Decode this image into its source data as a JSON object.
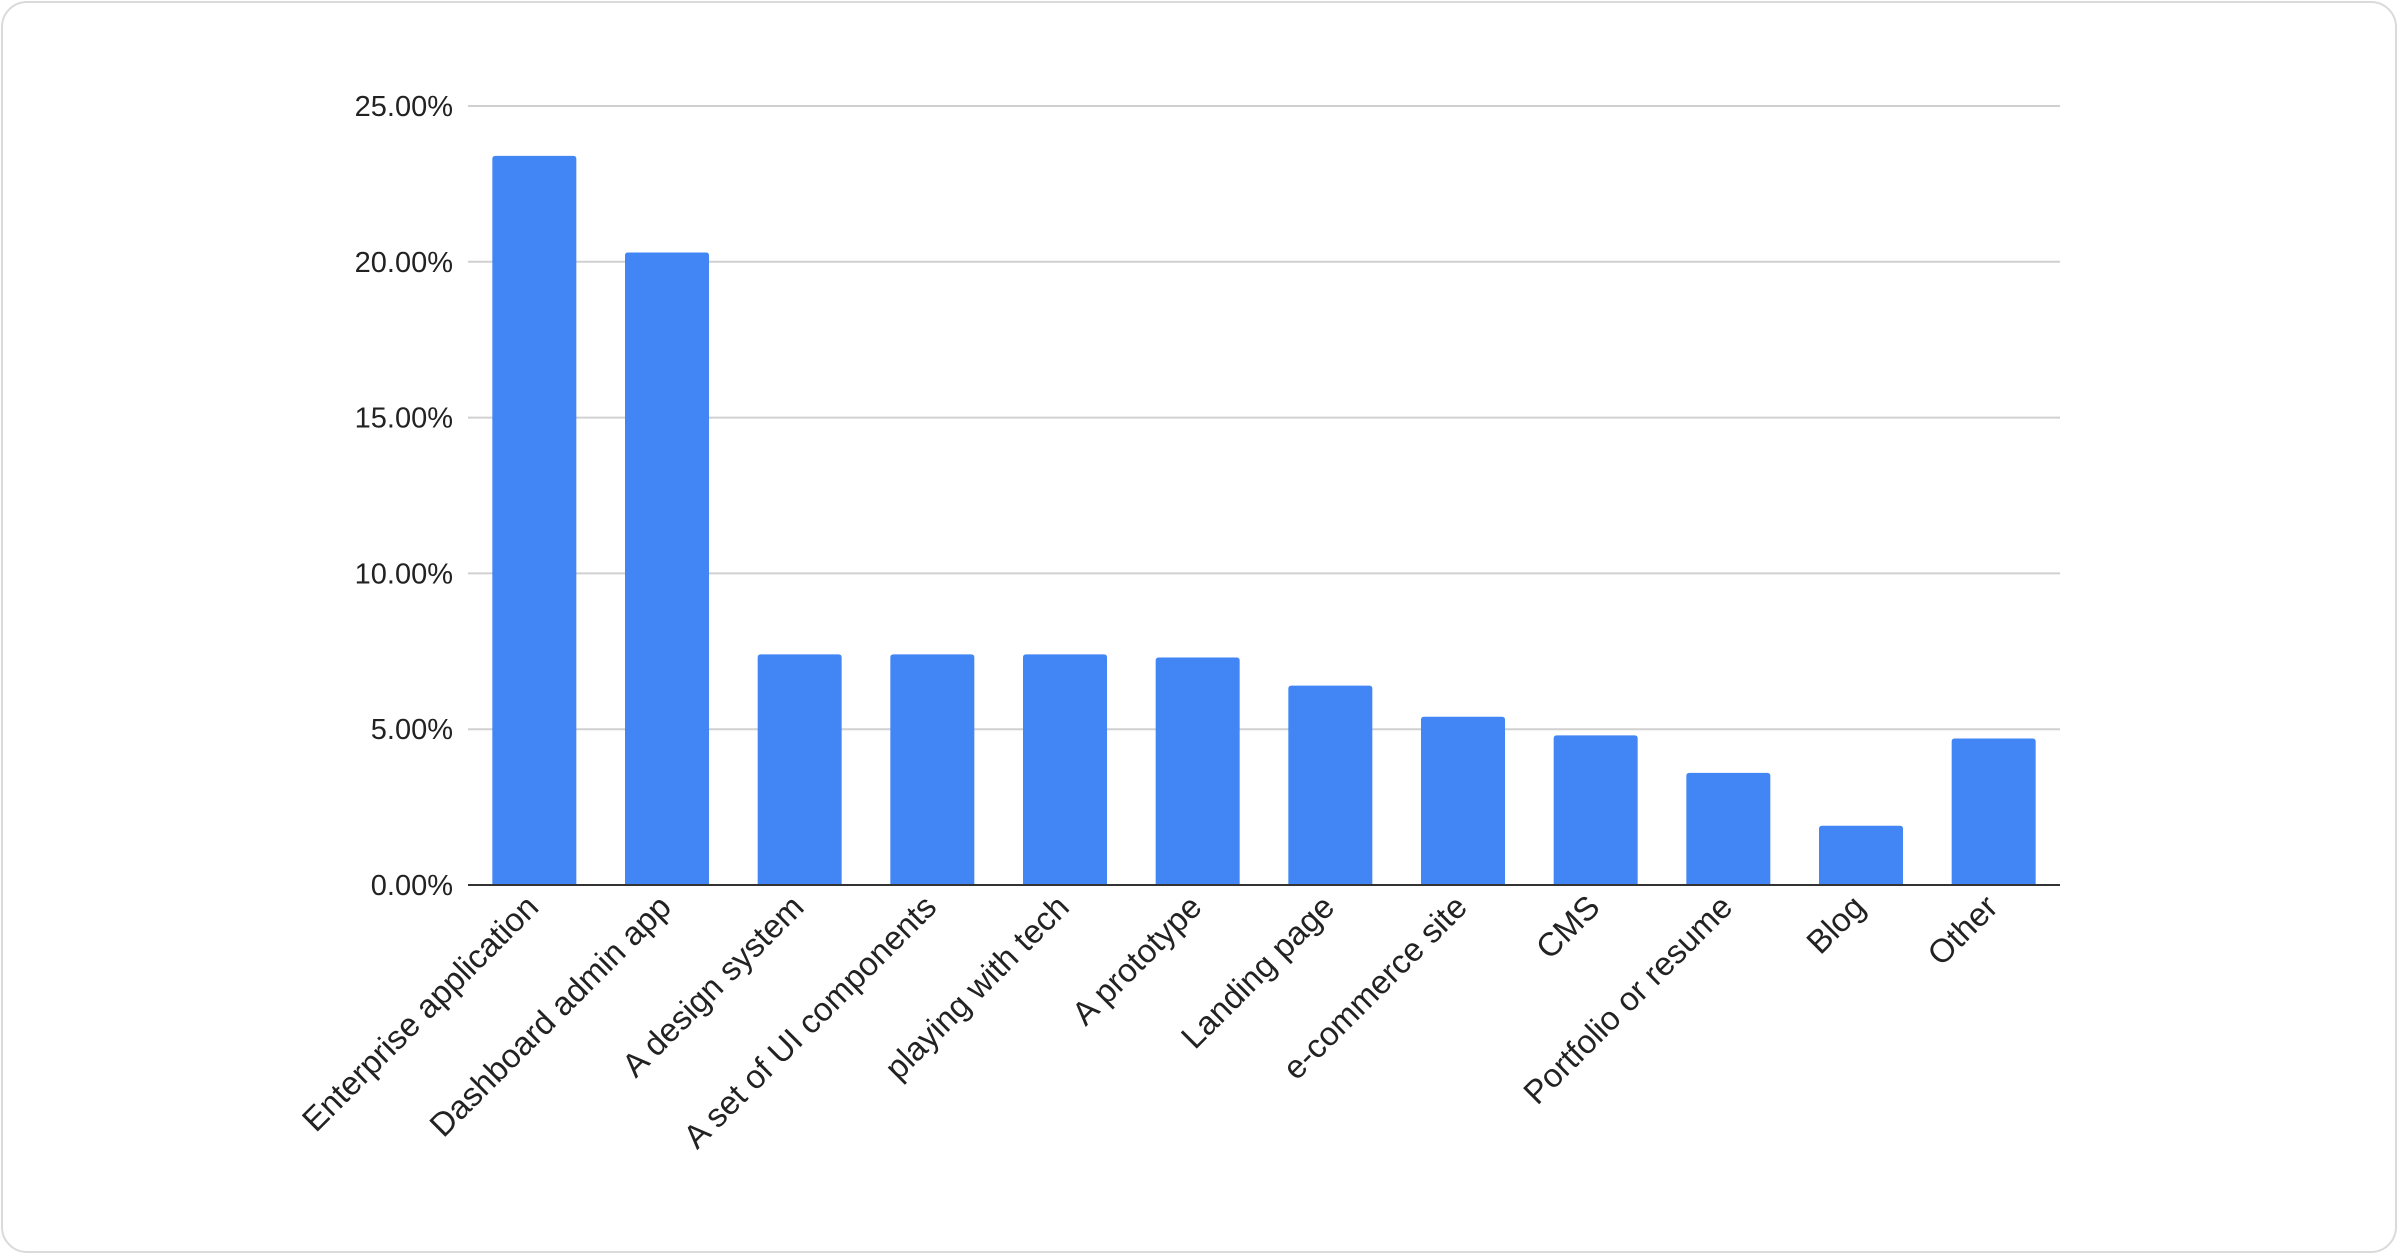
{
  "chart_data": {
    "type": "bar",
    "title": "",
    "xlabel": "",
    "ylabel": "",
    "categories": [
      "Enterprise application",
      "Dashboard admin app",
      "A design system",
      "A set of UI components",
      "playing with tech",
      "A prototype",
      "Landing page",
      "e-commerce site",
      "CMS",
      "Portfolio or resume",
      "Blog",
      "Other"
    ],
    "values": [
      23.4,
      20.3,
      7.4,
      7.4,
      7.4,
      7.3,
      6.4,
      5.4,
      4.8,
      3.6,
      1.9,
      4.7
    ],
    "ylim": [
      0,
      25
    ],
    "yticks": [
      0,
      5,
      10,
      15,
      20,
      25
    ],
    "ytick_labels": [
      "0.00%",
      "5.00%",
      "10.00%",
      "15.00%",
      "20.00%",
      "25.00%"
    ],
    "grid": true,
    "legend": "none",
    "bar_color": "#4285f4"
  }
}
